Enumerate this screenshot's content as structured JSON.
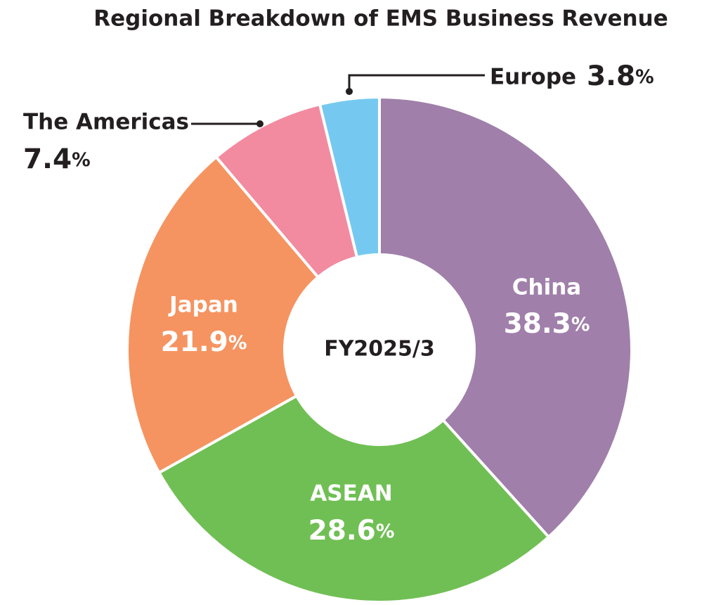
{
  "chart_data": {
    "type": "donut",
    "title": "Regional Breakdown of EMS Business Revenue",
    "center_label": "FY2025/3",
    "categories": [
      "China",
      "ASEAN",
      "Japan",
      "The Americas",
      "Europe"
    ],
    "values": [
      38.3,
      28.6,
      21.9,
      7.4,
      3.8
    ],
    "value_labels": [
      "38.3%",
      "28.6%",
      "21.9%",
      "7.4%",
      "3.8%"
    ],
    "colors": [
      "#a07faa",
      "#70bf54",
      "#f59461",
      "#f28ba0",
      "#75c9f0"
    ]
  }
}
